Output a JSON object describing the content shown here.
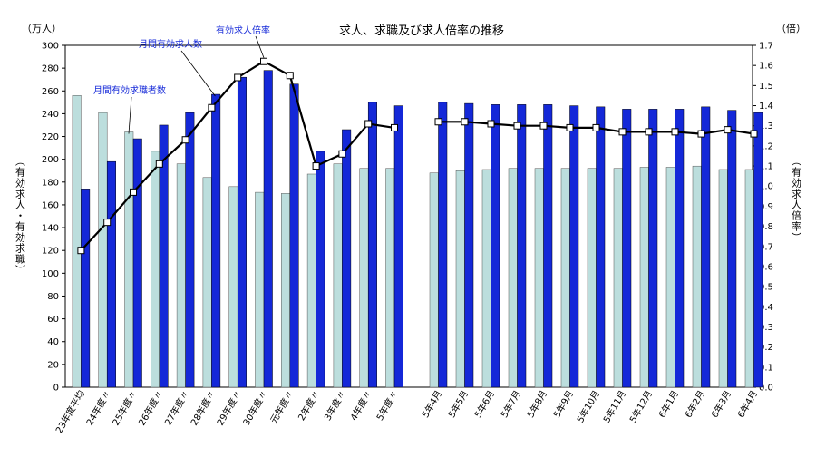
{
  "chart_data": {
    "type": "bar",
    "title": "求人、求職及び求人倍率の推移",
    "y_left_unit": "（万人）",
    "y_right_unit": "（倍）",
    "y_left_label": "（有効求人・有効求職）",
    "y_right_label": "（有効求人倍率）",
    "y_left_range": [
      0,
      300
    ],
    "y_left_ticks": [
      "0",
      "20",
      "40",
      "60",
      "80",
      "100",
      "120",
      "140",
      "160",
      "180",
      "200",
      "220",
      "240",
      "260",
      "280",
      "300"
    ],
    "y_right_range": [
      0,
      1.7
    ],
    "y_right_ticks": [
      "0.0",
      "0.1",
      "0.2",
      "0.3",
      "0.4",
      "0.5",
      "0.6",
      "0.7",
      "0.8",
      "0.9",
      "1.0",
      "1.1",
      "1.2",
      "1.3",
      "1.4",
      "1.5",
      "1.6",
      "1.7"
    ],
    "categories": [
      "23年度平均",
      "24年度〃",
      "25年度〃",
      "26年度〃",
      "27年度〃",
      "28年度〃",
      "29年度〃",
      "30年度〃",
      "元年度〃",
      "2年度〃",
      "3年度〃",
      "4年度〃",
      "5年度〃",
      "5年4月",
      "5年5月",
      "5年6月",
      "5年7月",
      "5年8月",
      "5年9月",
      "5年10月",
      "5年11月",
      "5年12月",
      "6年1月",
      "6年2月",
      "6年3月",
      "6年4月"
    ],
    "gap_after_index": 12,
    "series": [
      {
        "name": "月間有効求職者数",
        "color": "#bcdedd",
        "axis": "left",
        "values": [
          256,
          241,
          224,
          207,
          196,
          184,
          176,
          171,
          170,
          187,
          196,
          192,
          192,
          188,
          190,
          191,
          192,
          192,
          192,
          192,
          192,
          193,
          193,
          194,
          191,
          191
        ]
      },
      {
        "name": "月間有効求人数",
        "color": "#1428d8",
        "axis": "left",
        "values": [
          174,
          198,
          218,
          230,
          241,
          257,
          272,
          278,
          266,
          207,
          226,
          250,
          247,
          250,
          249,
          248,
          248,
          248,
          247,
          246,
          244,
          244,
          244,
          246,
          243,
          241
        ]
      },
      {
        "name": "有効求人倍率",
        "color": "#000000",
        "axis": "right",
        "type": "line",
        "values": [
          0.68,
          0.82,
          0.97,
          1.11,
          1.23,
          1.39,
          1.54,
          1.62,
          1.55,
          1.1,
          1.16,
          1.31,
          1.29,
          1.32,
          1.32,
          1.31,
          1.3,
          1.3,
          1.29,
          1.29,
          1.27,
          1.27,
          1.27,
          1.26,
          1.28,
          1.26
        ]
      }
    ],
    "annotations": [
      {
        "text": "有効求人倍率",
        "series": 2,
        "index": 7
      },
      {
        "text": "月間有効求人数",
        "series": 1,
        "index": 5
      },
      {
        "text": "月間有効求職者数",
        "series": 0,
        "index": 2
      }
    ]
  }
}
